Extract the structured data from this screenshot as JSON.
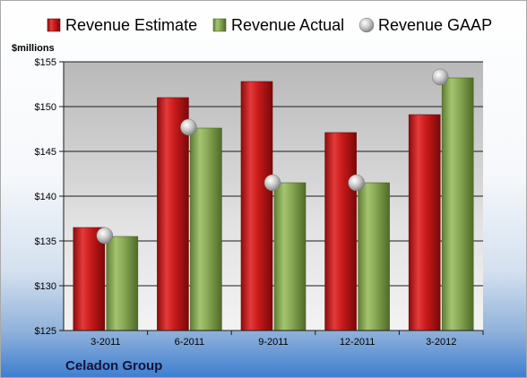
{
  "chart_data": {
    "type": "bar",
    "company": "Celadon Group",
    "unit_label": "$millions",
    "categories": [
      "3-2011",
      "6-2011",
      "9-2011",
      "12-2011",
      "3-2012"
    ],
    "series": [
      {
        "name": "Revenue Estimate",
        "kind": "bar",
        "color": "#d42020",
        "values": [
          136.5,
          151.0,
          152.8,
          147.1,
          149.1
        ]
      },
      {
        "name": "Revenue Actual",
        "kind": "bar",
        "color": "#8aae52",
        "values": [
          135.5,
          147.6,
          141.5,
          141.5,
          153.2
        ]
      },
      {
        "name": "Revenue GAAP",
        "kind": "marker",
        "color": "#b8b8b8",
        "values": [
          135.6,
          147.7,
          141.5,
          141.5,
          153.3
        ]
      }
    ],
    "ylim": [
      125,
      155
    ],
    "yticks": [
      125,
      130,
      135,
      140,
      145,
      150,
      155
    ],
    "ytick_labels": [
      "$125",
      "$130",
      "$135",
      "$140",
      "$145",
      "$150",
      "$155"
    ],
    "grid": true,
    "legend_position": "top"
  }
}
